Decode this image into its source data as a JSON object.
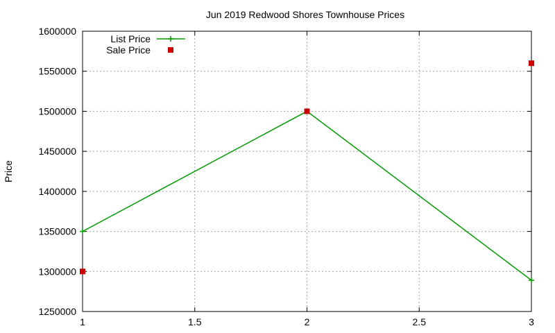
{
  "chart_data": {
    "type": "line",
    "title": "Jun 2019 Redwood Shores Townhouse Prices",
    "xlabel": "",
    "ylabel": "Price",
    "xlim": [
      1,
      3
    ],
    "ylim": [
      1250000,
      1600000
    ],
    "x_ticks": [
      1,
      1.5,
      2,
      2.5,
      3
    ],
    "x_tick_labels": [
      "1",
      "1.5",
      "2",
      "2.5",
      "3"
    ],
    "y_ticks": [
      1250000,
      1300000,
      1350000,
      1400000,
      1450000,
      1500000,
      1550000,
      1600000
    ],
    "y_tick_labels": [
      "1250000",
      "1300000",
      "1350000",
      "1400000",
      "1450000",
      "1500000",
      "1550000",
      "1600000"
    ],
    "grid": true,
    "legend_position": "top-left",
    "series": [
      {
        "name": "List Price",
        "style": "line-with-plus-markers",
        "color": "#009900",
        "x": [
          1,
          2,
          3
        ],
        "y": [
          1350000,
          1500000,
          1289000
        ]
      },
      {
        "name": "Sale Price",
        "style": "square-markers",
        "color": "#cc0000",
        "x": [
          1,
          2,
          3
        ],
        "y": [
          1300000,
          1500000,
          1560000
        ]
      }
    ]
  }
}
